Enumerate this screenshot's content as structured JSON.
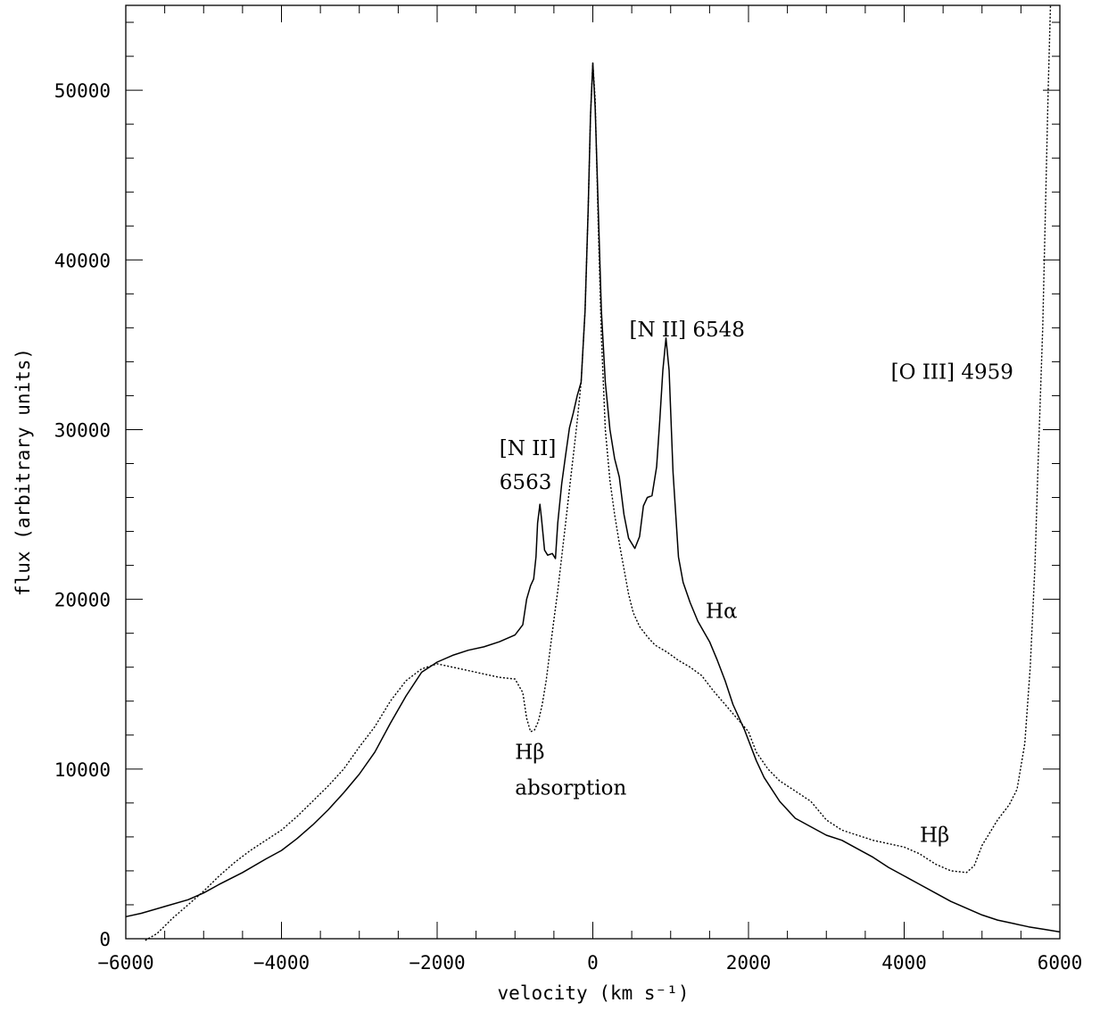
{
  "chart_data": {
    "type": "line",
    "xlabel": "velocity (km s⁻¹)",
    "ylabel": "flux (arbitrary units)",
    "xlim": [
      -6000,
      6000
    ],
    "ylim": [
      0,
      55000
    ],
    "x_ticks": [
      -6000,
      -4000,
      -2000,
      0,
      2000,
      4000,
      6000
    ],
    "y_ticks": [
      0,
      10000,
      20000,
      30000,
      40000,
      50000
    ],
    "x_tick_labels": [
      "−6000",
      "−4000",
      "−2000",
      "0",
      "2000",
      "4000",
      "6000"
    ],
    "y_tick_labels": [
      "0",
      "10000",
      "20000",
      "30000",
      "40000",
      "50000"
    ],
    "grid": false,
    "series": [
      {
        "style": "solid",
        "color": "#000000",
        "points": [
          [
            -6000,
            1300
          ],
          [
            -5800,
            1500
          ],
          [
            -5500,
            1900
          ],
          [
            -5200,
            2300
          ],
          [
            -5000,
            2700
          ],
          [
            -4800,
            3200
          ],
          [
            -4500,
            3900
          ],
          [
            -4200,
            4700
          ],
          [
            -4000,
            5200
          ],
          [
            -3800,
            5900
          ],
          [
            -3600,
            6700
          ],
          [
            -3400,
            7600
          ],
          [
            -3200,
            8600
          ],
          [
            -3000,
            9700
          ],
          [
            -2800,
            11000
          ],
          [
            -2600,
            12700
          ],
          [
            -2400,
            14300
          ],
          [
            -2200,
            15700
          ],
          [
            -2000,
            16300
          ],
          [
            -1800,
            16700
          ],
          [
            -1600,
            17000
          ],
          [
            -1400,
            17200
          ],
          [
            -1200,
            17500
          ],
          [
            -1000,
            17900
          ],
          [
            -900,
            18500
          ],
          [
            -850,
            20000
          ],
          [
            -800,
            20800
          ],
          [
            -760,
            21200
          ],
          [
            -730,
            22500
          ],
          [
            -710,
            24500
          ],
          [
            -680,
            25600
          ],
          [
            -660,
            24800
          ],
          [
            -620,
            22900
          ],
          [
            -580,
            22600
          ],
          [
            -520,
            22700
          ],
          [
            -480,
            22400
          ],
          [
            -450,
            24500
          ],
          [
            -400,
            26800
          ],
          [
            -350,
            28500
          ],
          [
            -300,
            30100
          ],
          [
            -250,
            31000
          ],
          [
            -200,
            32000
          ],
          [
            -150,
            32800
          ],
          [
            -100,
            37000
          ],
          [
            -60,
            43000
          ],
          [
            -30,
            48500
          ],
          [
            0,
            51600
          ],
          [
            30,
            49000
          ],
          [
            70,
            43000
          ],
          [
            110,
            37000
          ],
          [
            160,
            32800
          ],
          [
            220,
            30000
          ],
          [
            280,
            28300
          ],
          [
            340,
            27200
          ],
          [
            400,
            25000
          ],
          [
            460,
            23600
          ],
          [
            540,
            23000
          ],
          [
            600,
            23700
          ],
          [
            650,
            25500
          ],
          [
            700,
            26000
          ],
          [
            760,
            26100
          ],
          [
            820,
            27800
          ],
          [
            860,
            30500
          ],
          [
            900,
            33500
          ],
          [
            940,
            35400
          ],
          [
            980,
            33500
          ],
          [
            1030,
            27500
          ],
          [
            1100,
            22500
          ],
          [
            1160,
            21000
          ],
          [
            1250,
            19800
          ],
          [
            1350,
            18700
          ],
          [
            1500,
            17500
          ],
          [
            1600,
            16400
          ],
          [
            1700,
            15200
          ],
          [
            1800,
            13800
          ],
          [
            1950,
            12300
          ],
          [
            2100,
            10500
          ],
          [
            2200,
            9500
          ],
          [
            2400,
            8100
          ],
          [
            2600,
            7100
          ],
          [
            2800,
            6600
          ],
          [
            3000,
            6100
          ],
          [
            3200,
            5800
          ],
          [
            3400,
            5300
          ],
          [
            3600,
            4800
          ],
          [
            3800,
            4200
          ],
          [
            4000,
            3700
          ],
          [
            4200,
            3200
          ],
          [
            4400,
            2700
          ],
          [
            4600,
            2200
          ],
          [
            4800,
            1800
          ],
          [
            5000,
            1400
          ],
          [
            5200,
            1100
          ],
          [
            5400,
            900
          ],
          [
            5600,
            700
          ],
          [
            5800,
            550
          ],
          [
            6000,
            400
          ]
        ]
      },
      {
        "style": "dotted",
        "color": "#000000",
        "points": [
          [
            -5750,
            -100
          ],
          [
            -5600,
            300
          ],
          [
            -5400,
            1200
          ],
          [
            -5200,
            2000
          ],
          [
            -5000,
            2800
          ],
          [
            -4800,
            3700
          ],
          [
            -4600,
            4500
          ],
          [
            -4400,
            5200
          ],
          [
            -4200,
            5800
          ],
          [
            -4000,
            6400
          ],
          [
            -3800,
            7200
          ],
          [
            -3600,
            8100
          ],
          [
            -3400,
            9000
          ],
          [
            -3200,
            10000
          ],
          [
            -3000,
            11300
          ],
          [
            -2800,
            12500
          ],
          [
            -2600,
            14000
          ],
          [
            -2400,
            15200
          ],
          [
            -2200,
            15900
          ],
          [
            -2000,
            16200
          ],
          [
            -1800,
            16000
          ],
          [
            -1600,
            15800
          ],
          [
            -1400,
            15600
          ],
          [
            -1200,
            15400
          ],
          [
            -1000,
            15300
          ],
          [
            -900,
            14500
          ],
          [
            -850,
            13000
          ],
          [
            -800,
            12200
          ],
          [
            -750,
            12300
          ],
          [
            -700,
            12800
          ],
          [
            -650,
            13800
          ],
          [
            -600,
            15200
          ],
          [
            -550,
            17000
          ],
          [
            -500,
            18800
          ],
          [
            -450,
            20500
          ],
          [
            -400,
            22500
          ],
          [
            -350,
            24500
          ],
          [
            -300,
            26500
          ],
          [
            -250,
            28500
          ],
          [
            -200,
            30500
          ],
          [
            -150,
            32800
          ],
          [
            -100,
            37000
          ],
          [
            -60,
            43000
          ],
          [
            -30,
            48500
          ],
          [
            0,
            51600
          ],
          [
            30,
            49500
          ],
          [
            70,
            42000
          ],
          [
            110,
            35500
          ],
          [
            160,
            30000
          ],
          [
            220,
            27000
          ],
          [
            280,
            25000
          ],
          [
            340,
            23300
          ],
          [
            400,
            21800
          ],
          [
            460,
            20300
          ],
          [
            520,
            19200
          ],
          [
            600,
            18400
          ],
          [
            700,
            17800
          ],
          [
            800,
            17300
          ],
          [
            950,
            16900
          ],
          [
            1100,
            16400
          ],
          [
            1250,
            16000
          ],
          [
            1400,
            15500
          ],
          [
            1550,
            14600
          ],
          [
            1700,
            13800
          ],
          [
            1850,
            13000
          ],
          [
            2000,
            12200
          ],
          [
            2100,
            11000
          ],
          [
            2250,
            10000
          ],
          [
            2400,
            9300
          ],
          [
            2600,
            8700
          ],
          [
            2800,
            8100
          ],
          [
            3000,
            7000
          ],
          [
            3200,
            6400
          ],
          [
            3400,
            6100
          ],
          [
            3600,
            5800
          ],
          [
            3800,
            5600
          ],
          [
            4000,
            5400
          ],
          [
            4200,
            5000
          ],
          [
            4400,
            4400
          ],
          [
            4600,
            4000
          ],
          [
            4800,
            3900
          ],
          [
            4900,
            4300
          ],
          [
            5000,
            5500
          ],
          [
            5200,
            7000
          ],
          [
            5350,
            7900
          ],
          [
            5450,
            8800
          ],
          [
            5550,
            11500
          ],
          [
            5620,
            16000
          ],
          [
            5680,
            22000
          ],
          [
            5720,
            28000
          ],
          [
            5780,
            36000
          ],
          [
            5820,
            44000
          ],
          [
            5850,
            50000
          ],
          [
            5880,
            55000
          ]
        ]
      }
    ],
    "annotations": [
      {
        "text": "[N II] 6548",
        "x": 470,
        "y": 35500
      },
      {
        "text": "[O III] 4959",
        "x": 3830,
        "y": 33000
      },
      {
        "text": "[N II]",
        "x": -1200,
        "y": 28500
      },
      {
        "text": "6563",
        "x": -1200,
        "y": 26500
      },
      {
        "text": "Hα",
        "x": 1450,
        "y": 18900
      },
      {
        "text": "Hβ",
        "x": -1000,
        "y": 10600
      },
      {
        "text": "absorption",
        "x": -1000,
        "y": 8500
      },
      {
        "text": "Hβ",
        "x": 4200,
        "y": 5700
      }
    ]
  }
}
